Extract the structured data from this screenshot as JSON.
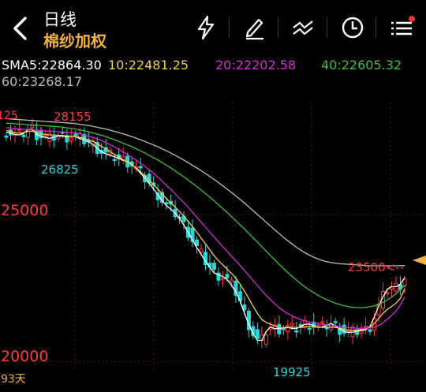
{
  "header": {
    "title": "日线",
    "subtitle": "棉纱加权",
    "icons": [
      "back-arrow-icon",
      "lightning-icon",
      "draw-pen-icon",
      "indicator-lines-icon",
      "clock-icon",
      "menu-list-icon"
    ],
    "notification_dot_color": "#e23a3a"
  },
  "indicators": {
    "ma5": "SMA5:22864.30",
    "ma10": "10:22481.25",
    "ma20": "20:22202.58",
    "ma40": "40:22605.32",
    "ma60": "60:23268.17"
  },
  "chart": {
    "price_labels": {
      "upper": "25000",
      "lower": "20000"
    },
    "annotations": {
      "high": "28155",
      "low1": "26825",
      "low2": "19925",
      "current": "23500<--",
      "left_cut": "125"
    },
    "period": "93天",
    "colors": {
      "up": "#ff3b3b",
      "down": "#29d6d6",
      "grid": "#5a1414",
      "ma5": "#ffffff",
      "ma10": "#f2d14a",
      "ma20": "#d62ad6",
      "ma40": "#3ec03e",
      "ma60": "#bdbdbd",
      "marker": "#f2b23d"
    }
  },
  "chart_data": {
    "type": "line",
    "title": "棉纱加权",
    "ylim": [
      19700,
      28800
    ],
    "x": [
      1,
      2,
      3,
      4,
      5,
      6,
      7,
      8,
      9,
      10,
      11,
      12,
      13,
      14,
      15,
      16,
      17,
      18,
      19,
      20,
      21,
      22,
      23,
      24,
      25,
      26,
      27,
      28,
      29,
      30,
      31,
      32,
      33,
      34,
      35,
      36,
      37,
      38,
      39,
      40,
      41,
      42,
      43,
      44,
      45,
      46,
      47,
      48,
      49,
      50,
      51,
      52,
      53,
      54,
      55,
      56,
      57,
      58,
      59,
      60,
      61,
      62,
      63,
      64,
      65,
      66,
      67,
      68,
      69,
      70,
      71,
      72,
      73,
      74,
      75,
      76,
      77,
      78,
      79,
      80,
      81,
      82,
      83,
      84,
      85,
      86,
      87,
      88,
      89,
      90,
      91,
      92,
      93
    ],
    "series": [
      {
        "name": "SMA5",
        "values": [
          27800,
          27760,
          27720,
          27700,
          27760,
          27880,
          27900,
          27720,
          27660,
          27620,
          27580,
          27640,
          27660,
          27660,
          27640,
          27660,
          27640,
          27580,
          27520,
          27470,
          27380,
          27250,
          27130,
          27060,
          27010,
          26960,
          26900,
          26840,
          26790,
          26700,
          26560,
          26400,
          26230,
          26070,
          25870,
          25680,
          25470,
          25300,
          25180,
          25050,
          24870,
          24640,
          24400,
          24140,
          23880,
          23650,
          23420,
          23210,
          23020,
          22950,
          22900,
          22790,
          22600,
          22380,
          22070,
          21650,
          21270,
          20950,
          20730,
          20730,
          21030,
          21180,
          21130,
          21130,
          21160,
          21180,
          21130,
          21130,
          21200,
          21280,
          21280,
          21230,
          21180,
          21180,
          21240,
          21300,
          21220,
          21110,
          21030,
          21000,
          21010,
          21050,
          21060,
          21090,
          21210,
          21530,
          21900,
          22210,
          22470,
          22550,
          22550,
          22640,
          22864
        ]
      },
      {
        "name": "10",
        "values": [
          27850,
          27820,
          27780,
          27760,
          27780,
          27820,
          27830,
          27780,
          27740,
          27720,
          27700,
          27700,
          27690,
          27680,
          27670,
          27660,
          27650,
          27620,
          27580,
          27540,
          27480,
          27400,
          27310,
          27220,
          27130,
          27040,
          26950,
          26860,
          26780,
          26690,
          26580,
          26450,
          26310,
          26170,
          26020,
          25860,
          25700,
          25540,
          25390,
          25250,
          25100,
          24940,
          24770,
          24590,
          24400,
          24200,
          24000,
          23800,
          23600,
          23430,
          23290,
          23150,
          23000,
          22840,
          22640,
          22400,
          22150,
          21890,
          21640,
          21440,
          21340,
          21280,
          21220,
          21170,
          21150,
          21160,
          21180,
          21170,
          21170,
          21180,
          21200,
          21210,
          21190,
          21170,
          21170,
          21180,
          21170,
          21140,
          21100,
          21080,
          21070,
          21080,
          21100,
          21130,
          21180,
          21300,
          21480,
          21650,
          21780,
          21880,
          21990,
          22160,
          22481
        ]
      },
      {
        "name": "20",
        "values": [
          27950,
          27930,
          27910,
          27900,
          27890,
          27890,
          27880,
          27870,
          27850,
          27840,
          27830,
          27820,
          27810,
          27800,
          27790,
          27780,
          27770,
          27740,
          27700,
          27660,
          27620,
          27570,
          27510,
          27440,
          27370,
          27290,
          27210,
          27120,
          27030,
          26940,
          26840,
          26740,
          26630,
          26520,
          26400,
          26270,
          26130,
          25990,
          25850,
          25700,
          25550,
          25400,
          25240,
          25080,
          24910,
          24740,
          24570,
          24400,
          24230,
          24070,
          23910,
          23750,
          23590,
          23430,
          23270,
          23100,
          22930,
          22760,
          22590,
          22420,
          22260,
          22110,
          21970,
          21840,
          21730,
          21640,
          21560,
          21490,
          21430,
          21390,
          21350,
          21320,
          21290,
          21270,
          21250,
          21230,
          21220,
          21200,
          21180,
          21160,
          21150,
          21140,
          21140,
          21140,
          21150,
          21180,
          21240,
          21330,
          21450,
          21580,
          21720,
          21930,
          22202
        ]
      },
      {
        "name": "40",
        "values": [
          28100,
          28090,
          28080,
          28070,
          28060,
          28050,
          28040,
          28030,
          28020,
          28010,
          28000,
          27990,
          27980,
          27960,
          27940,
          27920,
          27900,
          27870,
          27840,
          27810,
          27770,
          27730,
          27690,
          27640,
          27590,
          27540,
          27480,
          27420,
          27360,
          27300,
          27230,
          27160,
          27090,
          27010,
          26930,
          26850,
          26760,
          26670,
          26580,
          26480,
          26380,
          26280,
          26170,
          26060,
          25950,
          25830,
          25710,
          25590,
          25460,
          25330,
          25200,
          25070,
          24930,
          24790,
          24650,
          24510,
          24360,
          24210,
          24060,
          23910,
          23760,
          23610,
          23460,
          23310,
          23170,
          23030,
          22900,
          22770,
          22650,
          22540,
          22440,
          22350,
          22260,
          22180,
          22110,
          22050,
          21990,
          21940,
          21900,
          21870,
          21850,
          21840,
          21840,
          21850,
          21870,
          21900,
          21950,
          22020,
          22100,
          22200,
          22310,
          22450,
          22605
        ]
      },
      {
        "name": "60",
        "values": [
          28250,
          28240,
          28230,
          28220,
          28210,
          28200,
          28190,
          28180,
          28170,
          28160,
          28150,
          28140,
          28130,
          28120,
          28110,
          28100,
          28080,
          28060,
          28040,
          28020,
          27990,
          27960,
          27930,
          27900,
          27860,
          27820,
          27780,
          27740,
          27690,
          27640,
          27590,
          27540,
          27480,
          27420,
          27360,
          27300,
          27230,
          27160,
          27090,
          27010,
          26930,
          26850,
          26760,
          26670,
          26580,
          26490,
          26390,
          26290,
          26190,
          26080,
          25970,
          25860,
          25750,
          25630,
          25510,
          25390,
          25260,
          25130,
          25000,
          24870,
          24740,
          24610,
          24480,
          24350,
          24230,
          24110,
          24000,
          23890,
          23790,
          23700,
          23620,
          23550,
          23490,
          23440,
          23400,
          23370,
          23350,
          23330,
          23320,
          23310,
          23300,
          23290,
          23280,
          23270,
          23260,
          23260,
          23260,
          23260,
          23260,
          23260,
          23260,
          23265,
          23268
        ]
      }
    ]
  }
}
